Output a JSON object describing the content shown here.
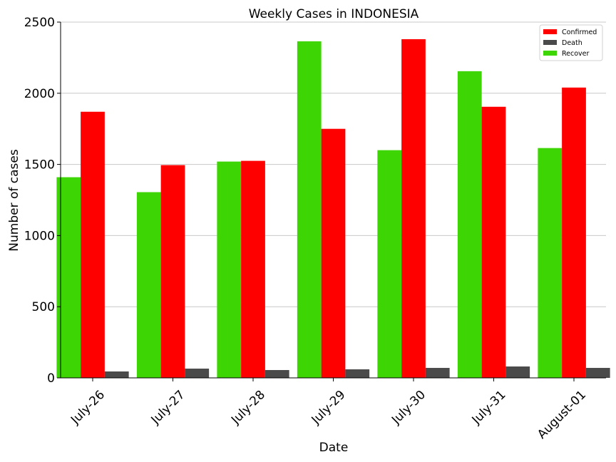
{
  "chart_data": {
    "type": "bar",
    "title": "Weekly Cases in INDONESIA",
    "xlabel": "Date",
    "ylabel": "Number of cases",
    "ylim": [
      0,
      2500
    ],
    "yticks": [
      0,
      500,
      1000,
      1500,
      2000,
      2500
    ],
    "grid": "horizontal",
    "legend_position": "top-right",
    "categories": [
      "July-26",
      "July-27",
      "July-28",
      "July-29",
      "July-30",
      "July-31",
      "August-01"
    ],
    "series": [
      {
        "name": "Recover",
        "color": "#3dd604",
        "values": [
          1410,
          1305,
          1520,
          2365,
          1600,
          2155,
          1615
        ]
      },
      {
        "name": "Confirmed",
        "color": "#ff0000",
        "values": [
          1870,
          1495,
          1525,
          1750,
          2380,
          1905,
          2040
        ]
      },
      {
        "name": "Death",
        "color": "#4a4a4a",
        "values": [
          45,
          65,
          55,
          60,
          70,
          80,
          70
        ]
      }
    ],
    "legend_order": [
      "Confirmed",
      "Death",
      "Recover"
    ]
  }
}
